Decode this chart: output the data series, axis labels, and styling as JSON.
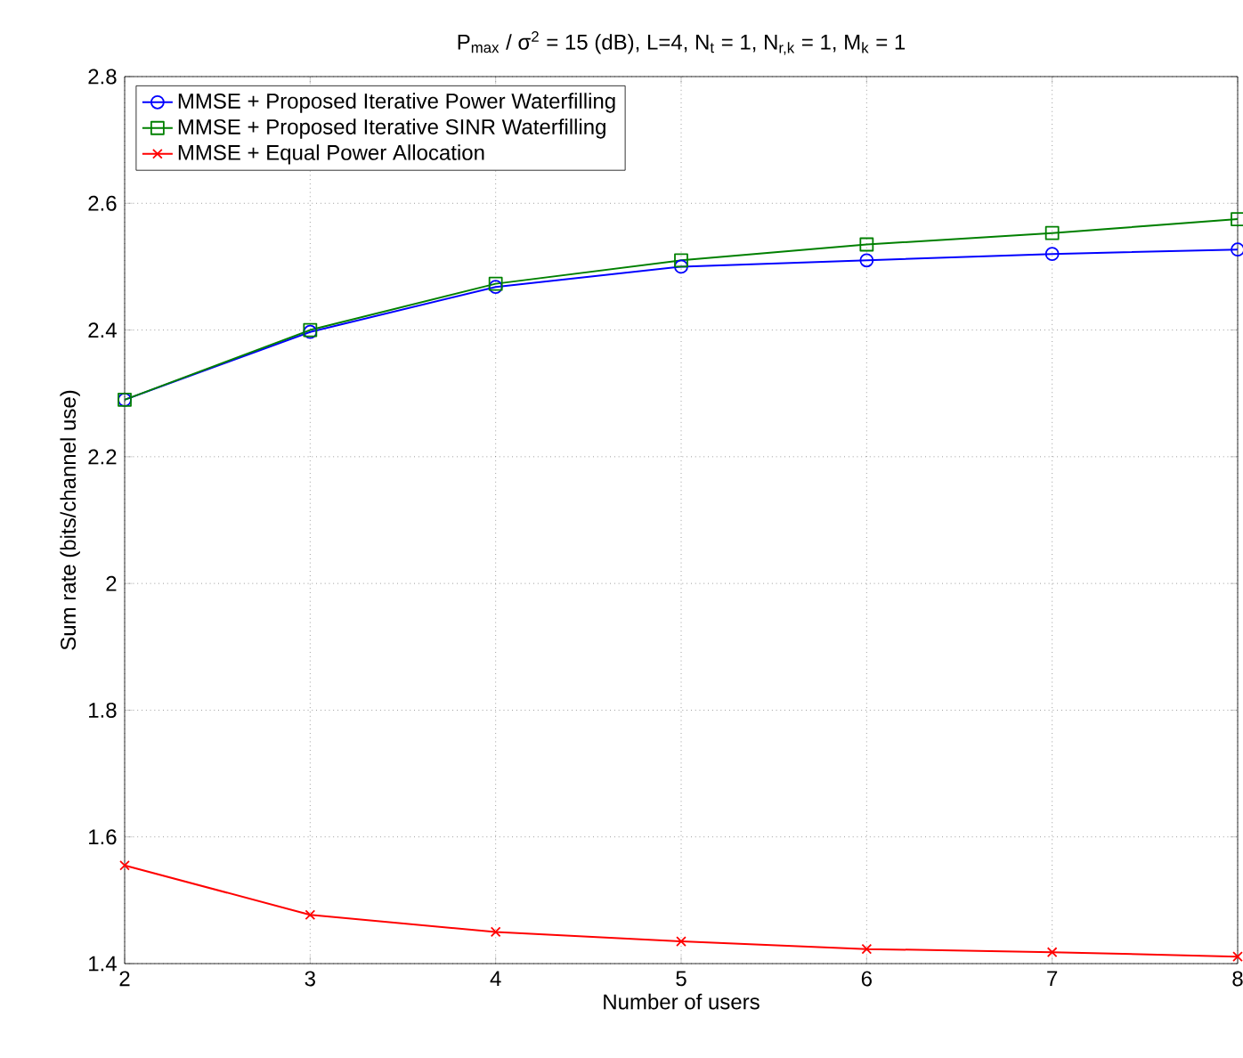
{
  "chart_data": {
    "type": "line",
    "title": "P$_{max}$ / σ$^{2}$ = 15 (dB), L=4, N$_{t}$ = 1, N$_{r,k}$ = 1, M$_{k}$ = 1",
    "xlabel": "Number of users",
    "ylabel": "Sum rate (bits/channel use)",
    "x": [
      2,
      3,
      4,
      5,
      6,
      7,
      8
    ],
    "series": [
      {
        "name": "MMSE + Proposed Iterative Power Waterfilling",
        "color": "#0000ff",
        "marker": "circle",
        "values": [
          2.29,
          2.397,
          2.468,
          2.5,
          2.51,
          2.52,
          2.527
        ]
      },
      {
        "name": "MMSE + Proposed Iterative SINR Waterfilling",
        "color": "#008000",
        "marker": "square",
        "values": [
          2.29,
          2.4,
          2.473,
          2.51,
          2.535,
          2.553,
          2.575
        ]
      },
      {
        "name": "MMSE + Equal Power Allocation",
        "color": "#ff0000",
        "marker": "cross",
        "values": [
          1.555,
          1.477,
          1.45,
          1.435,
          1.423,
          1.418,
          1.411
        ]
      }
    ],
    "xlim": [
      2,
      8
    ],
    "ylim": [
      1.4,
      2.8
    ],
    "xticks": [
      2,
      3,
      4,
      5,
      6,
      7,
      8
    ],
    "yticks": [
      1.4,
      1.6,
      1.8,
      2,
      2.2,
      2.4,
      2.6,
      2.8
    ],
    "grid": true,
    "legend": "top left",
    "line_style": "solid"
  }
}
